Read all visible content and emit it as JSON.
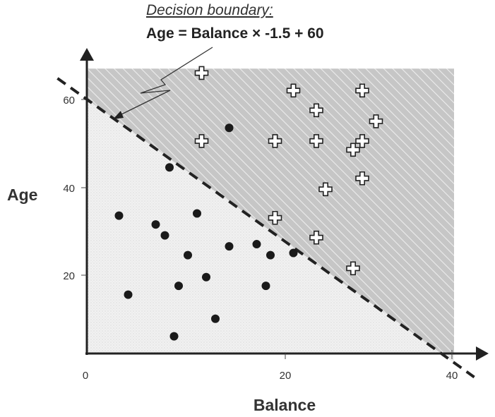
{
  "chart_data": {
    "type": "scatter",
    "xlabel": "Balance",
    "ylabel": "Age",
    "xlim": [
      0,
      41
    ],
    "ylim": [
      0,
      67
    ],
    "x_ticks": [
      0,
      20,
      40
    ],
    "y_ticks": [
      20,
      40,
      60
    ],
    "grid": false,
    "annotation": {
      "title": "Decision boundary:",
      "equation": "Age = Balance × -1.5 +  60"
    },
    "boundary": {
      "slope": -1.5,
      "intercept": 60
    },
    "regions": {
      "above_color": "#c9c9c9",
      "below_color": "#efefef"
    },
    "series": [
      {
        "marker": "plus",
        "points": [
          [
            12.5,
            66
          ],
          [
            22.5,
            62
          ],
          [
            30.0,
            62
          ],
          [
            25.0,
            57.5
          ],
          [
            31.5,
            55
          ],
          [
            12.5,
            50.5
          ],
          [
            20.5,
            50.5
          ],
          [
            25.0,
            50.5
          ],
          [
            30.0,
            50.5
          ],
          [
            29.0,
            48.5
          ],
          [
            30.0,
            42
          ],
          [
            26.0,
            39.5
          ],
          [
            20.5,
            33
          ],
          [
            25.0,
            28.5
          ],
          [
            29.0,
            21.5
          ]
        ]
      },
      {
        "marker": "dot",
        "points": [
          [
            15.5,
            53.5
          ],
          [
            9.0,
            44.5
          ],
          [
            3.5,
            33.5
          ],
          [
            12.0,
            34
          ],
          [
            7.5,
            31.5
          ],
          [
            8.5,
            29
          ],
          [
            15.5,
            26.5
          ],
          [
            18.5,
            27
          ],
          [
            20.0,
            24.5
          ],
          [
            11.0,
            24.5
          ],
          [
            22.5,
            25
          ],
          [
            13.0,
            19.5
          ],
          [
            19.5,
            17.5
          ],
          [
            4.5,
            15.5
          ],
          [
            10.0,
            17.5
          ],
          [
            14.0,
            10
          ],
          [
            9.5,
            6
          ]
        ]
      }
    ]
  }
}
